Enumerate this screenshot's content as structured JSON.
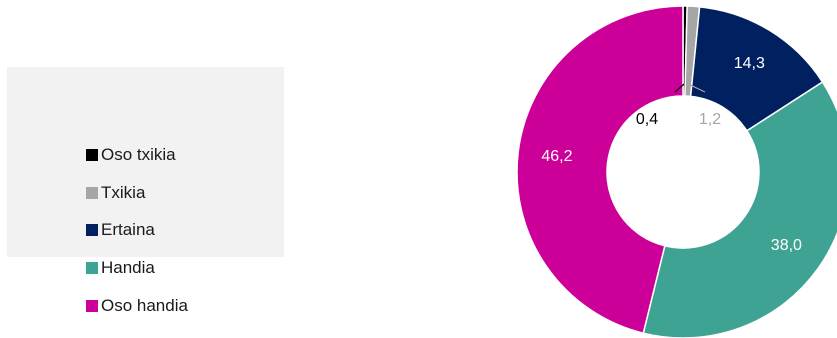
{
  "chart_data": {
    "type": "pie",
    "donut": true,
    "categories": [
      "Oso txikia",
      "Txikia",
      "Ertaina",
      "Handia",
      "Oso handia"
    ],
    "values": [
      0.4,
      1.2,
      14.3,
      38.0,
      46.2
    ],
    "value_labels": [
      "0,4",
      "1,2",
      "14,3",
      "38,0",
      "46,2"
    ],
    "colors": [
      "#000000",
      "#a6a6a6",
      "#002060",
      "#3ea393",
      "#cc0099"
    ],
    "label_colors": [
      "#000000",
      "#a6a6a6",
      "#ffffff",
      "#ffffff",
      "#ffffff"
    ],
    "legend_position": "left"
  }
}
